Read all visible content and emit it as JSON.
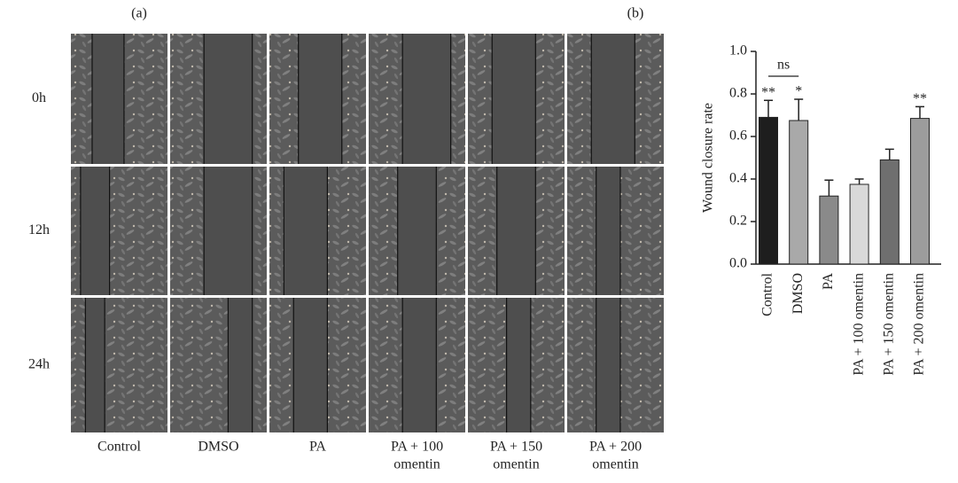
{
  "panel_a": {
    "label": "(a)",
    "rows": [
      "0h",
      "12h",
      "24h"
    ],
    "columns": [
      [
        "Control"
      ],
      [
        "DMSO"
      ],
      [
        "PA"
      ],
      [
        "PA + 100",
        "omentin"
      ],
      [
        "PA + 150",
        "omentin"
      ],
      [
        "PA + 200",
        "omentin"
      ]
    ]
  },
  "chart_data": {
    "type": "bar",
    "panel_label": "(b)",
    "y_label": "Wound closure rate",
    "categories": [
      "Control",
      "DMSO",
      "PA",
      "PA + 100 omentin",
      "PA + 150 omentin",
      "PA + 200 omentin"
    ],
    "values": [
      0.69,
      0.675,
      0.32,
      0.375,
      0.49,
      0.685
    ],
    "errors": [
      0.08,
      0.1,
      0.075,
      0.025,
      0.05,
      0.055
    ],
    "colors": [
      "#1e1e1e",
      "#a9a9a9",
      "#8a8a8a",
      "#d9d9d9",
      "#6f6f6f",
      "#9c9c9c"
    ],
    "significance": [
      "**",
      "*",
      null,
      null,
      null,
      "**"
    ],
    "bracket_label": "ns",
    "ylim": [
      0,
      1
    ],
    "yticks": [
      {
        "value": 0,
        "label": "0.0"
      },
      0.2,
      0.4,
      0.6,
      0.8,
      {
        "value": 1,
        "label": "1.0"
      }
    ]
  }
}
